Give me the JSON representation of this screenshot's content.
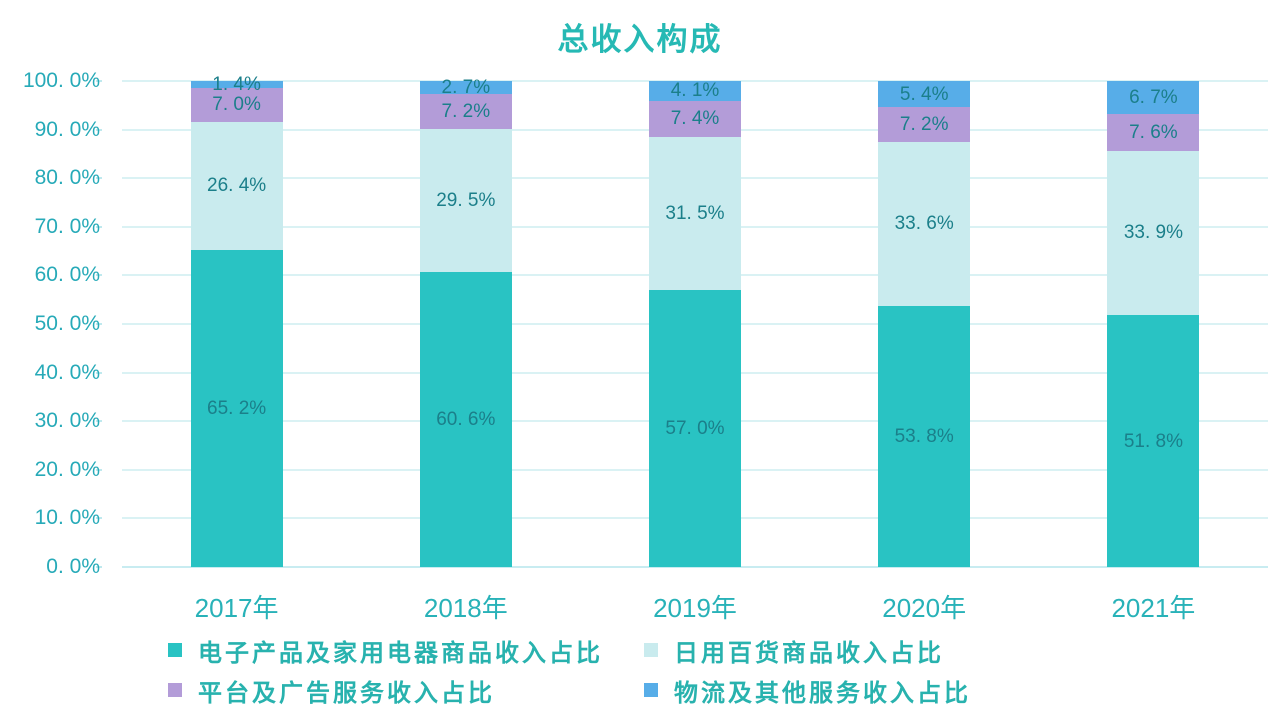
{
  "title": "总收入构成",
  "y_axis": {
    "tick_labels": [
      "100. 0%",
      "90. 0%",
      "80. 0%",
      "70. 0%",
      "60. 0%",
      "50. 0%",
      "40. 0%",
      "30. 0%",
      "20. 0%",
      "10. 0%",
      "0. 0%"
    ]
  },
  "x_axis": {
    "categories": [
      "2017年",
      "2018年",
      "2019年",
      "2020年",
      "2021年"
    ]
  },
  "legend": {
    "items": [
      {
        "label": "电子产品及家用电器商品收入占比",
        "color": "#29c3c3"
      },
      {
        "label": "日用百货商品收入占比",
        "color": "#c9ebee"
      },
      {
        "label": "平台及广告服务收入占比",
        "color": "#b39cd8"
      },
      {
        "label": "物流及其他服务收入占比",
        "color": "#57ade8"
      }
    ]
  },
  "chart_data": {
    "type": "bar",
    "stacked": true,
    "percent_stacked": true,
    "title": "总收入构成",
    "categories": [
      "2017年",
      "2018年",
      "2019年",
      "2020年",
      "2021年"
    ],
    "series": [
      {
        "name": "电子产品及家用电器商品收入占比",
        "color": "#29c3c3",
        "values": [
          65.2,
          60.6,
          57.0,
          53.8,
          51.8
        ],
        "labels": [
          "65. 2%",
          "60. 6%",
          "57. 0%",
          "53. 8%",
          "51. 8%"
        ]
      },
      {
        "name": "日用百货商品收入占比",
        "color": "#c9ebee",
        "values": [
          26.4,
          29.5,
          31.5,
          33.6,
          33.9
        ],
        "labels": [
          "26. 4%",
          "29. 5%",
          "31. 5%",
          "33. 6%",
          "33. 9%"
        ]
      },
      {
        "name": "平台及广告服务收入占比",
        "color": "#b39cd8",
        "values": [
          7.0,
          7.2,
          7.4,
          7.2,
          7.6
        ],
        "labels": [
          "7. 0%",
          "7. 2%",
          "7. 4%",
          "7. 2%",
          "7. 6%"
        ]
      },
      {
        "name": "物流及其他服务收入占比",
        "color": "#57ade8",
        "values": [
          1.4,
          2.7,
          4.1,
          5.4,
          6.7
        ],
        "labels": [
          "1. 4%",
          "2. 7%",
          "4. 1%",
          "5. 4%",
          "6. 7%"
        ]
      }
    ],
    "ylim": [
      0,
      100
    ],
    "ylabel": "",
    "xlabel": "",
    "grid": true,
    "gridline_color": "#daf2f4",
    "text_color": "#28b2b8",
    "data_label_color": "#1b7f8a",
    "legend_position": "bottom"
  }
}
